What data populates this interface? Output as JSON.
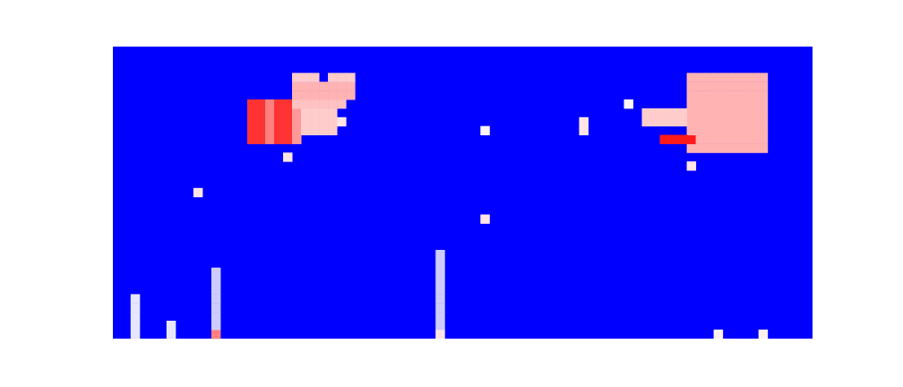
{
  "chart_data": {
    "type": "heatmap",
    "xlim": [
      0,
      78
    ],
    "ylim": [
      0,
      33
    ],
    "tick_labels": false,
    "grid": false,
    "color_range": [
      0,
      1
    ],
    "cells": [
      [
        15,
        22,
        0.9
      ],
      [
        15,
        23,
        0.9
      ],
      [
        15,
        24,
        0.9
      ],
      [
        15,
        25,
        0.9
      ],
      [
        15,
        26,
        0.9
      ],
      [
        16,
        22,
        0.9
      ],
      [
        16,
        23,
        0.9
      ],
      [
        16,
        24,
        0.9
      ],
      [
        16,
        25,
        0.9
      ],
      [
        16,
        26,
        0.9
      ],
      [
        17,
        22,
        0.75
      ],
      [
        17,
        23,
        0.75
      ],
      [
        17,
        24,
        0.75
      ],
      [
        17,
        25,
        0.75
      ],
      [
        17,
        26,
        0.75
      ],
      [
        18,
        22,
        0.9
      ],
      [
        18,
        23,
        0.9
      ],
      [
        18,
        24,
        0.9
      ],
      [
        18,
        25,
        0.9
      ],
      [
        18,
        26,
        0.9
      ],
      [
        19,
        22,
        0.9
      ],
      [
        19,
        23,
        0.9
      ],
      [
        19,
        24,
        0.9
      ],
      [
        19,
        25,
        0.9
      ],
      [
        19,
        26,
        0.9
      ],
      [
        20,
        22,
        0.7
      ],
      [
        20,
        23,
        0.7
      ],
      [
        20,
        24,
        0.7
      ],
      [
        20,
        25,
        0.7
      ],
      [
        21,
        23,
        0.6
      ],
      [
        21,
        24,
        0.6
      ],
      [
        21,
        25,
        0.6
      ],
      [
        22,
        23,
        0.6
      ],
      [
        22,
        24,
        0.6
      ],
      [
        22,
        25,
        0.6
      ],
      [
        23,
        23,
        0.6
      ],
      [
        23,
        24,
        0.6
      ],
      [
        23,
        25,
        0.6
      ],
      [
        24,
        23,
        0.6
      ],
      [
        24,
        24,
        0.6
      ],
      [
        24,
        25,
        0.6
      ],
      [
        25,
        24,
        0.55
      ],
      [
        20,
        26,
        0.62
      ],
      [
        21,
        26,
        0.62
      ],
      [
        22,
        26,
        0.62
      ],
      [
        23,
        26,
        0.62
      ],
      [
        24,
        26,
        0.62
      ],
      [
        25,
        26,
        0.62
      ],
      [
        20,
        27,
        0.65
      ],
      [
        21,
        27,
        0.65
      ],
      [
        22,
        27,
        0.65
      ],
      [
        23,
        27,
        0.65
      ],
      [
        24,
        27,
        0.65
      ],
      [
        25,
        27,
        0.65
      ],
      [
        26,
        27,
        0.65
      ],
      [
        20,
        28,
        0.65
      ],
      [
        21,
        28,
        0.65
      ],
      [
        22,
        28,
        0.65
      ],
      [
        23,
        28,
        0.65
      ],
      [
        24,
        28,
        0.65
      ],
      [
        25,
        28,
        0.65
      ],
      [
        26,
        28,
        0.65
      ],
      [
        20,
        29,
        0.6
      ],
      [
        21,
        29,
        0.6
      ],
      [
        22,
        29,
        0.6
      ],
      [
        24,
        29,
        0.6
      ],
      [
        25,
        29,
        0.6
      ],
      [
        26,
        29,
        0.6
      ],
      [
        64,
        21,
        0.65
      ],
      [
        65,
        21,
        0.65
      ],
      [
        66,
        21,
        0.65
      ],
      [
        67,
        21,
        0.65
      ],
      [
        68,
        21,
        0.65
      ],
      [
        69,
        21,
        0.65
      ],
      [
        70,
        21,
        0.65
      ],
      [
        71,
        21,
        0.65
      ],
      [
        72,
        21,
        0.65
      ],
      [
        64,
        22,
        0.95
      ],
      [
        65,
        22,
        0.65
      ],
      [
        66,
        22,
        0.65
      ],
      [
        67,
        22,
        0.65
      ],
      [
        68,
        22,
        0.65
      ],
      [
        69,
        22,
        0.65
      ],
      [
        70,
        22,
        0.65
      ],
      [
        71,
        22,
        0.65
      ],
      [
        72,
        22,
        0.65
      ],
      [
        64,
        23,
        0.65
      ],
      [
        65,
        23,
        0.65
      ],
      [
        66,
        23,
        0.65
      ],
      [
        67,
        23,
        0.65
      ],
      [
        68,
        23,
        0.65
      ],
      [
        69,
        23,
        0.65
      ],
      [
        70,
        23,
        0.65
      ],
      [
        71,
        23,
        0.65
      ],
      [
        72,
        23,
        0.65
      ],
      [
        64,
        24,
        0.65
      ],
      [
        65,
        24,
        0.65
      ],
      [
        66,
        24,
        0.65
      ],
      [
        67,
        24,
        0.65
      ],
      [
        68,
        24,
        0.65
      ],
      [
        69,
        24,
        0.65
      ],
      [
        70,
        24,
        0.65
      ],
      [
        71,
        24,
        0.65
      ],
      [
        72,
        24,
        0.65
      ],
      [
        64,
        25,
        0.65
      ],
      [
        65,
        25,
        0.65
      ],
      [
        66,
        25,
        0.65
      ],
      [
        67,
        25,
        0.65
      ],
      [
        68,
        25,
        0.65
      ],
      [
        69,
        25,
        0.65
      ],
      [
        70,
        25,
        0.65
      ],
      [
        71,
        25,
        0.65
      ],
      [
        72,
        25,
        0.65
      ],
      [
        64,
        26,
        0.65
      ],
      [
        65,
        26,
        0.65
      ],
      [
        66,
        26,
        0.65
      ],
      [
        67,
        26,
        0.65
      ],
      [
        68,
        26,
        0.65
      ],
      [
        69,
        26,
        0.65
      ],
      [
        70,
        26,
        0.65
      ],
      [
        71,
        26,
        0.65
      ],
      [
        72,
        26,
        0.65
      ],
      [
        64,
        27,
        0.65
      ],
      [
        65,
        27,
        0.65
      ],
      [
        66,
        27,
        0.65
      ],
      [
        67,
        27,
        0.65
      ],
      [
        68,
        27,
        0.65
      ],
      [
        69,
        27,
        0.65
      ],
      [
        70,
        27,
        0.65
      ],
      [
        71,
        27,
        0.65
      ],
      [
        72,
        27,
        0.65
      ],
      [
        64,
        28,
        0.65
      ],
      [
        65,
        28,
        0.65
      ],
      [
        66,
        28,
        0.65
      ],
      [
        67,
        28,
        0.65
      ],
      [
        68,
        28,
        0.65
      ],
      [
        69,
        28,
        0.65
      ],
      [
        70,
        28,
        0.65
      ],
      [
        71,
        28,
        0.65
      ],
      [
        72,
        28,
        0.65
      ],
      [
        64,
        29,
        0.65
      ],
      [
        65,
        29,
        0.65
      ],
      [
        66,
        29,
        0.65
      ],
      [
        67,
        29,
        0.65
      ],
      [
        68,
        29,
        0.65
      ],
      [
        69,
        29,
        0.65
      ],
      [
        70,
        29,
        0.65
      ],
      [
        71,
        29,
        0.65
      ],
      [
        72,
        29,
        0.65
      ],
      [
        59,
        24,
        0.6
      ],
      [
        60,
        24,
        0.6
      ],
      [
        61,
        24,
        0.6
      ],
      [
        62,
        24,
        0.6
      ],
      [
        63,
        24,
        0.6
      ],
      [
        59,
        25,
        0.6
      ],
      [
        60,
        25,
        0.6
      ],
      [
        61,
        25,
        0.6
      ],
      [
        62,
        25,
        0.6
      ],
      [
        63,
        25,
        0.6
      ],
      [
        61,
        22,
        0.95
      ],
      [
        62,
        22,
        0.95
      ],
      [
        63,
        22,
        0.95
      ],
      [
        9,
        16,
        0.55
      ],
      [
        19,
        20,
        0.55
      ],
      [
        41,
        13,
        0.55
      ],
      [
        52,
        23,
        0.55
      ],
      [
        52,
        24,
        0.55
      ],
      [
        57,
        26,
        0.52
      ],
      [
        64,
        19,
        0.55
      ],
      [
        41,
        23,
        0.52
      ],
      [
        11,
        0,
        0.75
      ],
      [
        36,
        0,
        0.55
      ],
      [
        67,
        0,
        0.53
      ],
      [
        72,
        0,
        0.53
      ],
      [
        2,
        0,
        0.45
      ],
      [
        2,
        1,
        0.45
      ],
      [
        2,
        2,
        0.45
      ],
      [
        2,
        3,
        0.45
      ],
      [
        2,
        4,
        0.45
      ],
      [
        6,
        0,
        0.45
      ],
      [
        6,
        1,
        0.45
      ],
      [
        11,
        1,
        0.4
      ],
      [
        11,
        2,
        0.4
      ],
      [
        11,
        3,
        0.4
      ],
      [
        11,
        4,
        0.4
      ],
      [
        11,
        5,
        0.4
      ],
      [
        11,
        6,
        0.4
      ],
      [
        11,
        7,
        0.4
      ],
      [
        36,
        1,
        0.4
      ],
      [
        36,
        2,
        0.4
      ],
      [
        36,
        3,
        0.4
      ],
      [
        36,
        4,
        0.4
      ],
      [
        36,
        5,
        0.4
      ],
      [
        36,
        6,
        0.4
      ],
      [
        36,
        7,
        0.4
      ],
      [
        36,
        8,
        0.4
      ],
      [
        36,
        9,
        0.4
      ]
    ]
  }
}
